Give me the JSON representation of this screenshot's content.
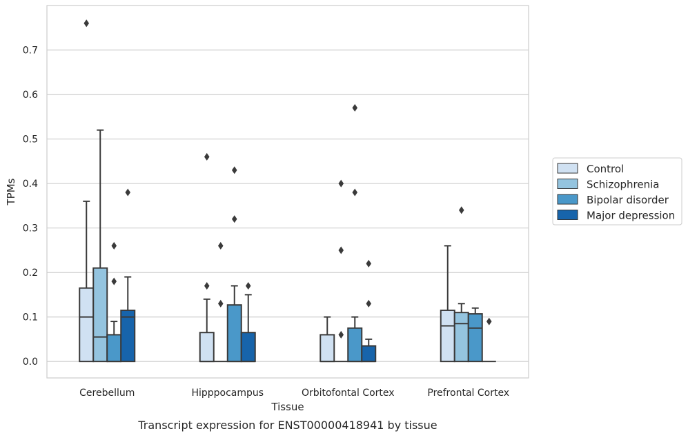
{
  "chart_data": {
    "type": "box",
    "xlabel": "Tissue",
    "ylabel": "TPMs",
    "caption": "Transcript expression for ENST00000418941 by tissue",
    "ylim": [
      -0.037,
      0.8
    ],
    "yticks": [
      0.0,
      0.1,
      0.2,
      0.3,
      0.4,
      0.5,
      0.6,
      0.7
    ],
    "ytick_labels": [
      "0.0",
      "0.1",
      "0.2",
      "0.3",
      "0.4",
      "0.5",
      "0.6",
      "0.7"
    ],
    "categories": [
      "Cerebellum",
      "Hipppocampus",
      "Orbitofontal Cortex",
      "Prefrontal Cortex"
    ],
    "grid": "horizontal",
    "legend_position": "right",
    "series": [
      {
        "name": "Control",
        "color": "#d0e1f2",
        "boxes": [
          {
            "q1": 0.0,
            "median": 0.1,
            "q3": 0.165,
            "whisker_low": 0.0,
            "whisker_high": 0.36,
            "outliers": [
              0.76
            ]
          },
          {
            "q1": 0.0,
            "median": 0.0,
            "q3": 0.065,
            "whisker_low": 0.0,
            "whisker_high": 0.14,
            "outliers": [
              0.17,
              0.46
            ]
          },
          {
            "q1": 0.0,
            "median": 0.0,
            "q3": 0.06,
            "whisker_low": 0.0,
            "whisker_high": 0.1,
            "outliers": []
          },
          {
            "q1": 0.0,
            "median": 0.08,
            "q3": 0.115,
            "whisker_low": 0.0,
            "whisker_high": 0.26,
            "outliers": []
          }
        ]
      },
      {
        "name": "Schizophrenia",
        "color": "#94c4df",
        "boxes": [
          {
            "q1": 0.0,
            "median": 0.055,
            "q3": 0.21,
            "whisker_low": 0.0,
            "whisker_high": 0.52,
            "outliers": []
          },
          {
            "q1": 0.0,
            "median": 0.0,
            "q3": 0.0,
            "whisker_low": 0.0,
            "whisker_high": 0.0,
            "outliers": [
              0.13,
              0.26
            ]
          },
          {
            "q1": 0.0,
            "median": 0.0,
            "q3": 0.0,
            "whisker_low": 0.0,
            "whisker_high": 0.0,
            "outliers": [
              0.06,
              0.25,
              0.4
            ]
          },
          {
            "q1": 0.0,
            "median": 0.085,
            "q3": 0.11,
            "whisker_low": 0.0,
            "whisker_high": 0.13,
            "outliers": [
              0.34
            ]
          }
        ]
      },
      {
        "name": "Bipolar disorder",
        "color": "#4a98c9",
        "boxes": [
          {
            "q1": 0.0,
            "median": 0.0,
            "q3": 0.06,
            "whisker_low": 0.0,
            "whisker_high": 0.09,
            "outliers": [
              0.18,
              0.26
            ]
          },
          {
            "q1": 0.0,
            "median": 0.0,
            "q3": 0.127,
            "whisker_low": 0.0,
            "whisker_high": 0.17,
            "outliers": [
              0.32,
              0.43
            ]
          },
          {
            "q1": 0.0,
            "median": 0.0,
            "q3": 0.075,
            "whisker_low": 0.0,
            "whisker_high": 0.1,
            "outliers": [
              0.38,
              0.57
            ]
          },
          {
            "q1": 0.0,
            "median": 0.075,
            "q3": 0.107,
            "whisker_low": 0.0,
            "whisker_high": 0.12,
            "outliers": []
          }
        ]
      },
      {
        "name": "Major depression",
        "color": "#1764ab",
        "boxes": [
          {
            "q1": 0.0,
            "median": 0.1,
            "q3": 0.115,
            "whisker_low": 0.0,
            "whisker_high": 0.19,
            "outliers": [
              0.38
            ]
          },
          {
            "q1": 0.0,
            "median": 0.0,
            "q3": 0.065,
            "whisker_low": 0.0,
            "whisker_high": 0.15,
            "outliers": [
              0.17
            ]
          },
          {
            "q1": 0.0,
            "median": 0.0,
            "q3": 0.035,
            "whisker_low": 0.0,
            "whisker_high": 0.05,
            "outliers": [
              0.13,
              0.22
            ]
          },
          {
            "q1": 0.0,
            "median": 0.0,
            "q3": 0.0,
            "whisker_low": 0.0,
            "whisker_high": 0.0,
            "outliers": [
              0.09
            ]
          }
        ]
      }
    ]
  }
}
